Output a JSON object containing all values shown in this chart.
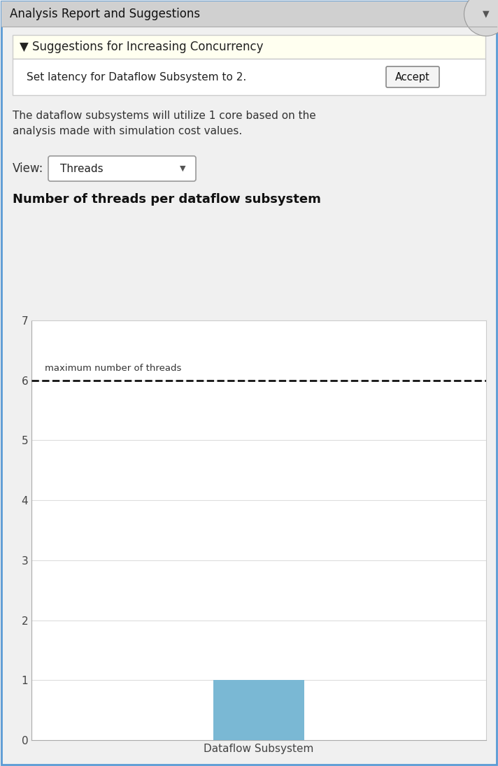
{
  "bg_color": "#ebebeb",
  "panel_bg": "#f0f0f0",
  "title_bar_text": "Analysis Report and Suggestions",
  "title_bar_bg": "#d0d0d0",
  "title_bar_fg": "#111111",
  "title_bar_fontsize": 12,
  "suggestions_header_text": "▼ Suggestions for Increasing Concurrency",
  "suggestions_header_bg": "#fffff0",
  "suggestions_header_border": "#cccccc",
  "suggestions_header_fontsize": 12,
  "suggestion_text": "Set latency for Dataflow Subsystem to 2.",
  "accept_button_text": "Accept",
  "info_text": "The dataflow subsystems will utilize 1 core based on the\nanalysis made with simulation cost values.",
  "view_label": "View:",
  "dropdown_text": "Threads",
  "chart_title": "Number of threads per dataflow subsystem",
  "chart_title_fontsize": 13,
  "bar_categories": [
    "Dataflow Subsystem"
  ],
  "bar_values": [
    1
  ],
  "bar_color": "#7ab8d4",
  "ylim": [
    0,
    7
  ],
  "yticks": [
    0,
    1,
    2,
    3,
    4,
    5,
    6,
    7
  ],
  "dashed_line_y": 6,
  "dashed_line_label": "maximum number of threads",
  "chart_bg": "#ffffff",
  "chart_border": "#cccccc",
  "grid_color": "#dddddd",
  "tick_color": "#444444",
  "axis_label_color": "#333333",
  "border_color": "#5b9bd5",
  "figure_width": 7.12,
  "figure_height": 10.95,
  "figure_dpi": 100
}
